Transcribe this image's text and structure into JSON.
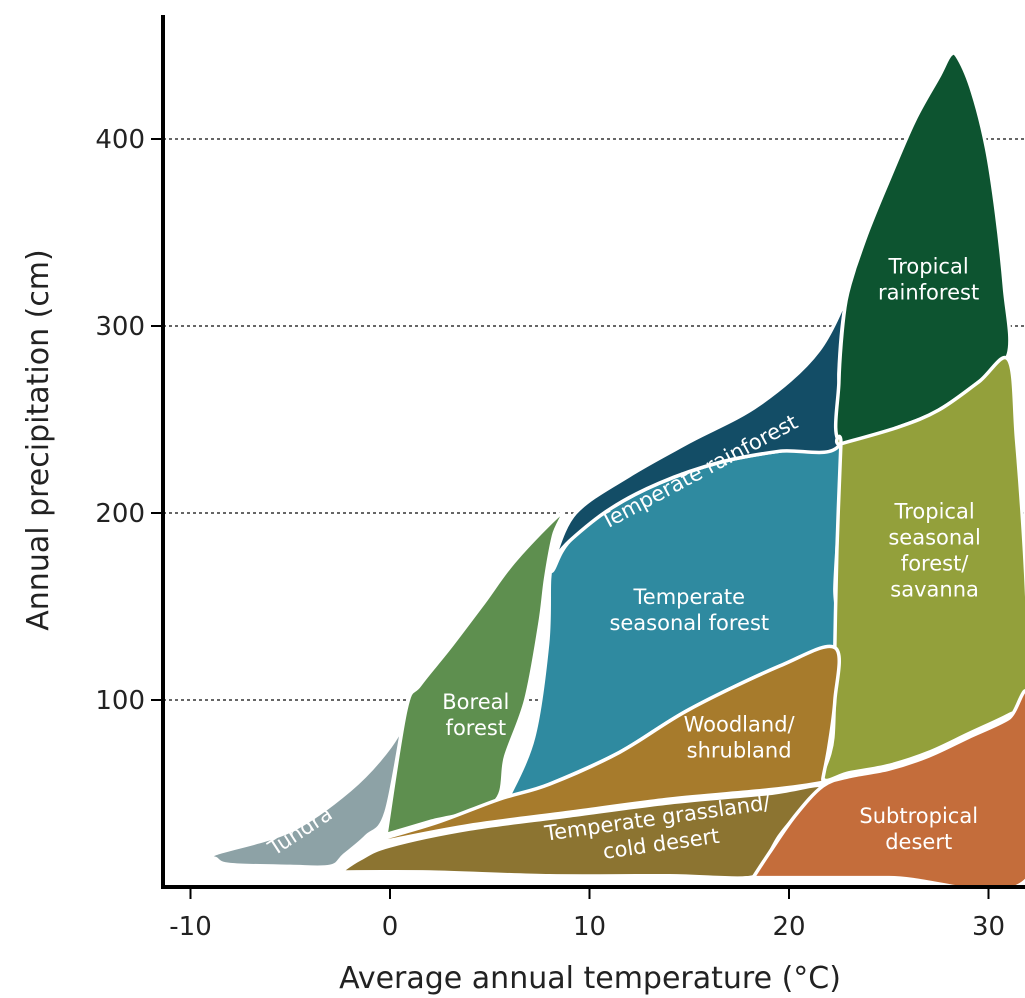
{
  "chart_data": {
    "type": "area",
    "xlabel": "Average annual temperature (°C)",
    "ylabel": "Annual precipitation (cm)",
    "xlim": [
      -12,
      32
    ],
    "ylim": [
      0,
      465
    ],
    "x_ticks": [
      -10,
      0,
      10,
      20,
      30
    ],
    "y_ticks": [
      100,
      200,
      300,
      400
    ],
    "y_grid": true,
    "colors": {
      "tundra": "#8da2a6",
      "boreal": "#5e8f4f",
      "temperate_seasonal": "#2f8aa0",
      "temperate_rainforest": "#134d66",
      "tropical_rainforest": "#0d5430",
      "tropical_seasonal": "#93a03b",
      "woodland": "#a77b2c",
      "grassland": "#8c7431",
      "desert": "#c46d3b"
    },
    "biomes": [
      {
        "key": "tundra",
        "label_lines": [
          "Tundra"
        ],
        "label_at": [
          -4.5,
          30
        ],
        "label_rotate": -33,
        "boundary": [
          [
            -8.7,
            18
          ],
          [
            -5,
            30
          ],
          [
            -2,
            52
          ],
          [
            0,
            75
          ],
          [
            1.2,
            98
          ],
          [
            0.8,
            95
          ],
          [
            -0.2,
            40
          ],
          [
            -1.2,
            27
          ],
          [
            -2.3,
            17
          ],
          [
            -3,
            11
          ],
          [
            -5,
            11
          ],
          [
            -8,
            12
          ],
          [
            -8.7,
            15
          ]
        ]
      },
      {
        "key": "boreal",
        "label_lines": [
          "Boreal",
          "forest"
        ],
        "label_at": [
          4.3,
          92
        ],
        "label_rotate": 0,
        "boundary": [
          [
            -0.2,
            28
          ],
          [
            0.8,
            95
          ],
          [
            1.5,
            108
          ],
          [
            3,
            128
          ],
          [
            4.7,
            152
          ],
          [
            6.3,
            175
          ],
          [
            8.6,
            200
          ],
          [
            8.2,
            188
          ],
          [
            7.8,
            165
          ],
          [
            7.5,
            140
          ],
          [
            6.8,
            100
          ],
          [
            5.8,
            70
          ],
          [
            5.2,
            45
          ],
          [
            2,
            35
          ],
          [
            -0.2,
            28
          ]
        ]
      },
      {
        "key": "temperate_seasonal",
        "label_lines": [
          "Temperate",
          "seasonal forest"
        ],
        "label_at": [
          15,
          148
        ],
        "label_rotate": 0,
        "boundary": [
          [
            5.9,
            47
          ],
          [
            7.2,
            80
          ],
          [
            7.9,
            130
          ],
          [
            8,
            165
          ],
          [
            8.2,
            170
          ],
          [
            9,
            185
          ],
          [
            11,
            202
          ],
          [
            13.5,
            216
          ],
          [
            16.5,
            227
          ],
          [
            19.5,
            233
          ],
          [
            22.5,
            236
          ],
          [
            22.5,
            200
          ],
          [
            22.3,
            160
          ],
          [
            22.3,
            128
          ],
          [
            19.5,
            118
          ],
          [
            15,
            95
          ],
          [
            11.5,
            72
          ],
          [
            8,
            55
          ],
          [
            5.9,
            47
          ]
        ]
      },
      {
        "key": "temperate_rainforest",
        "label_lines": [
          "Temperate rainforest"
        ],
        "label_at": [
          15.5,
          222
        ],
        "label_rotate": -28,
        "boundary": [
          [
            8.2,
            175
          ],
          [
            9.3,
            200
          ],
          [
            12,
            220
          ],
          [
            15,
            238
          ],
          [
            18.5,
            258
          ],
          [
            21.5,
            287
          ],
          [
            23.3,
            326
          ],
          [
            23.4,
            331
          ],
          [
            22.8,
            310
          ],
          [
            22.5,
            275
          ],
          [
            22.5,
            236
          ],
          [
            19.5,
            233
          ],
          [
            16.5,
            227
          ],
          [
            13.5,
            216
          ],
          [
            11,
            202
          ],
          [
            9,
            185
          ],
          [
            8.2,
            175
          ]
        ]
      },
      {
        "key": "tropical_rainforest",
        "label_lines": [
          "Tropical",
          "rainforest"
        ],
        "label_at": [
          27,
          325
        ],
        "label_rotate": 0,
        "boundary": [
          [
            23.3,
            331
          ],
          [
            24,
            352
          ],
          [
            25,
            378
          ],
          [
            26.3,
            410
          ],
          [
            27.5,
            433
          ],
          [
            28.1,
            445
          ],
          [
            28.5,
            443
          ],
          [
            29.2,
            425
          ],
          [
            29.9,
            395
          ],
          [
            30.4,
            360
          ],
          [
            30.8,
            320
          ],
          [
            31,
            285
          ],
          [
            29.5,
            270
          ],
          [
            27.5,
            255
          ],
          [
            25.5,
            246
          ],
          [
            22.6,
            237
          ],
          [
            22.5,
            270
          ],
          [
            22.8,
            310
          ],
          [
            23.3,
            331
          ]
        ]
      },
      {
        "key": "tropical_seasonal",
        "label_lines": [
          "Tropical",
          "seasonal",
          "forest/",
          "savanna"
        ],
        "label_at": [
          27.3,
          180
        ],
        "label_rotate": 0,
        "boundary": [
          [
            22.6,
            237
          ],
          [
            25.5,
            246
          ],
          [
            27.5,
            255
          ],
          [
            29.5,
            270
          ],
          [
            31,
            282
          ],
          [
            31.4,
            240
          ],
          [
            31.8,
            180
          ],
          [
            32,
            130
          ],
          [
            32,
            99
          ],
          [
            31,
            92
          ],
          [
            29,
            82
          ],
          [
            27,
            72
          ],
          [
            25,
            65
          ],
          [
            23,
            61
          ],
          [
            21.7,
            58
          ],
          [
            22.2,
            80
          ],
          [
            22.3,
            130
          ],
          [
            22.4,
            180
          ],
          [
            22.6,
            237
          ]
        ]
      },
      {
        "key": "woodland",
        "label_lines": [
          "Woodland/",
          "shrubland"
        ],
        "label_at": [
          17.5,
          80
        ],
        "label_rotate": 0,
        "boundary": [
          [
            -1.5,
            22
          ],
          [
            0,
            27
          ],
          [
            2.5,
            35
          ],
          [
            5.5,
            47
          ],
          [
            8,
            55
          ],
          [
            11.5,
            72
          ],
          [
            15,
            95
          ],
          [
            19.5,
            118
          ],
          [
            22.3,
            128
          ],
          [
            22.3,
            100
          ],
          [
            22,
            75
          ],
          [
            21.7,
            58
          ],
          [
            21.7,
            56
          ],
          [
            19,
            52
          ],
          [
            14,
            47
          ],
          [
            9,
            40
          ],
          [
            4,
            33
          ],
          [
            0,
            25
          ],
          [
            -1.5,
            22
          ]
        ]
      },
      {
        "key": "grassland",
        "label_lines": [
          "Temperate grassland/",
          "cold desert"
        ],
        "label_at": [
          13.5,
          30
        ],
        "label_rotate": -8,
        "boundary": [
          [
            -2.5,
            8
          ],
          [
            -1.5,
            15
          ],
          [
            0,
            22
          ],
          [
            4,
            31
          ],
          [
            9,
            38
          ],
          [
            14,
            45
          ],
          [
            19,
            50
          ],
          [
            21.7,
            54
          ],
          [
            20.5,
            40
          ],
          [
            19.5,
            27
          ],
          [
            18.7,
            12
          ],
          [
            18,
            5
          ],
          [
            14,
            6
          ],
          [
            8,
            6
          ],
          [
            2,
            8
          ],
          [
            -2.5,
            8
          ]
        ]
      },
      {
        "key": "desert",
        "label_lines": [
          "Subtropical",
          "desert"
        ],
        "label_at": [
          26.5,
          31
        ],
        "label_rotate": 0,
        "boundary": [
          [
            18.2,
            5
          ],
          [
            19,
            18
          ],
          [
            20.3,
            38
          ],
          [
            21.7,
            54
          ],
          [
            23,
            59
          ],
          [
            25,
            63
          ],
          [
            27,
            70
          ],
          [
            29,
            80
          ],
          [
            31,
            90
          ],
          [
            32,
            100
          ],
          [
            32,
            5
          ],
          [
            25,
            5
          ],
          [
            18.2,
            5
          ]
        ]
      }
    ]
  }
}
